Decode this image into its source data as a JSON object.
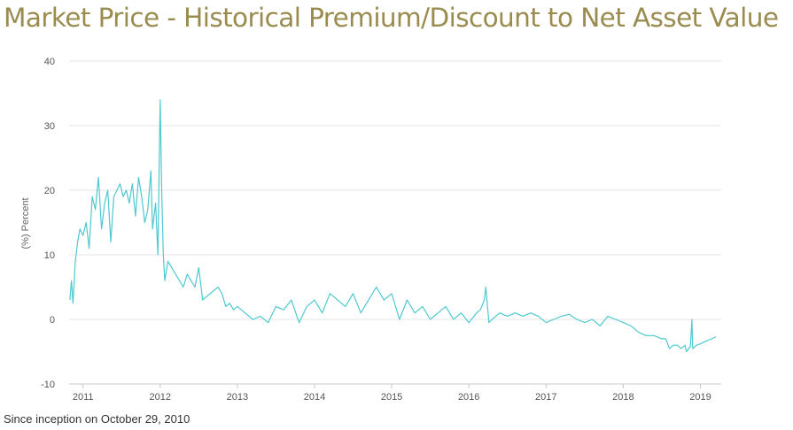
{
  "title": "Market Price - Historical Premium/Discount to Net Asset Value",
  "caption": "Since inception on October 29, 2010",
  "chart_data": {
    "type": "line",
    "ylabel": "(%) Percent",
    "xlabel": "",
    "ylim": [
      -10,
      40
    ],
    "yticks": [
      -10,
      0,
      10,
      20,
      30,
      40
    ],
    "xlim": [
      2010.82,
      2019.27
    ],
    "xticks": [
      2011,
      2012,
      2013,
      2014,
      2015,
      2016,
      2017,
      2018,
      2019
    ],
    "grid": "horizontal",
    "legend": "none",
    "line_color": "#4fc8d0",
    "series": [
      {
        "x": [
          2010.83,
          2010.85,
          2010.87,
          2010.9,
          2010.93,
          2010.96,
          2011.0,
          2011.04,
          2011.08,
          2011.12,
          2011.16,
          2011.2,
          2011.24,
          2011.28,
          2011.32,
          2011.36,
          2011.4,
          2011.44,
          2011.48,
          2011.52,
          2011.56,
          2011.6,
          2011.64,
          2011.68,
          2011.72,
          2011.76,
          2011.8,
          2011.84,
          2011.88,
          2011.9,
          2011.94,
          2011.97,
          2011.99,
          2012.0,
          2012.02,
          2012.04,
          2012.06,
          2012.1,
          2012.15,
          2012.2,
          2012.25,
          2012.3,
          2012.35,
          2012.4,
          2012.45,
          2012.5,
          2012.55,
          2012.6,
          2012.65,
          2012.7,
          2012.75,
          2012.8,
          2012.85,
          2012.9,
          2012.95,
          2013.0,
          2013.1,
          2013.2,
          2013.3,
          2013.4,
          2013.5,
          2013.6,
          2013.7,
          2013.8,
          2013.9,
          2014.0,
          2014.1,
          2014.2,
          2014.3,
          2014.4,
          2014.5,
          2014.6,
          2014.7,
          2014.8,
          2014.9,
          2015.0,
          2015.1,
          2015.2,
          2015.3,
          2015.4,
          2015.5,
          2015.6,
          2015.7,
          2015.8,
          2015.9,
          2016.0,
          2016.1,
          2016.15,
          2016.2,
          2016.22,
          2016.26,
          2016.3,
          2016.4,
          2016.5,
          2016.6,
          2016.7,
          2016.8,
          2016.9,
          2017.0,
          2017.1,
          2017.2,
          2017.3,
          2017.4,
          2017.5,
          2017.6,
          2017.7,
          2017.8,
          2017.9,
          2018.0,
          2018.1,
          2018.2,
          2018.3,
          2018.4,
          2018.5,
          2018.55,
          2018.6,
          2018.65,
          2018.7,
          2018.75,
          2018.8,
          2018.82,
          2018.85,
          2018.87,
          2018.89,
          2018.9,
          2018.95,
          2019.0,
          2019.05,
          2019.1,
          2019.15,
          2019.2
        ],
        "values": [
          3,
          6,
          2.5,
          9,
          12,
          14,
          13,
          15,
          11,
          19,
          17,
          22,
          14,
          18,
          20,
          12,
          19,
          20,
          21,
          19,
          20,
          18,
          21,
          16,
          22,
          19,
          15,
          17,
          23,
          14,
          18,
          10,
          26,
          34,
          20,
          10,
          6,
          9,
          8,
          7,
          6,
          5,
          7,
          6,
          5,
          8,
          3,
          3.5,
          4,
          4.5,
          5,
          4,
          2,
          2.5,
          1.5,
          2,
          1,
          0,
          0.5,
          -0.5,
          2,
          1.5,
          3,
          -0.5,
          2,
          3,
          1,
          4,
          3,
          2,
          4,
          1,
          3,
          5,
          3,
          4,
          0,
          3,
          1,
          2,
          0,
          1,
          2,
          0,
          1,
          -0.5,
          1,
          1.5,
          3,
          5,
          -0.5,
          0,
          1,
          0.5,
          1,
          0.5,
          1,
          0.5,
          -0.5,
          0,
          0.5,
          0.8,
          0,
          -0.5,
          0,
          -1,
          0.5,
          0,
          -0.5,
          -1,
          -2,
          -2.5,
          -2.5,
          -3,
          -3,
          -4.5,
          -4,
          -4,
          -4.5,
          -4,
          -5,
          -4.5,
          -4.2,
          0,
          -4.5,
          -4,
          -3.8,
          -3.5,
          -3.2,
          -3,
          -2.7
        ]
      }
    ]
  }
}
